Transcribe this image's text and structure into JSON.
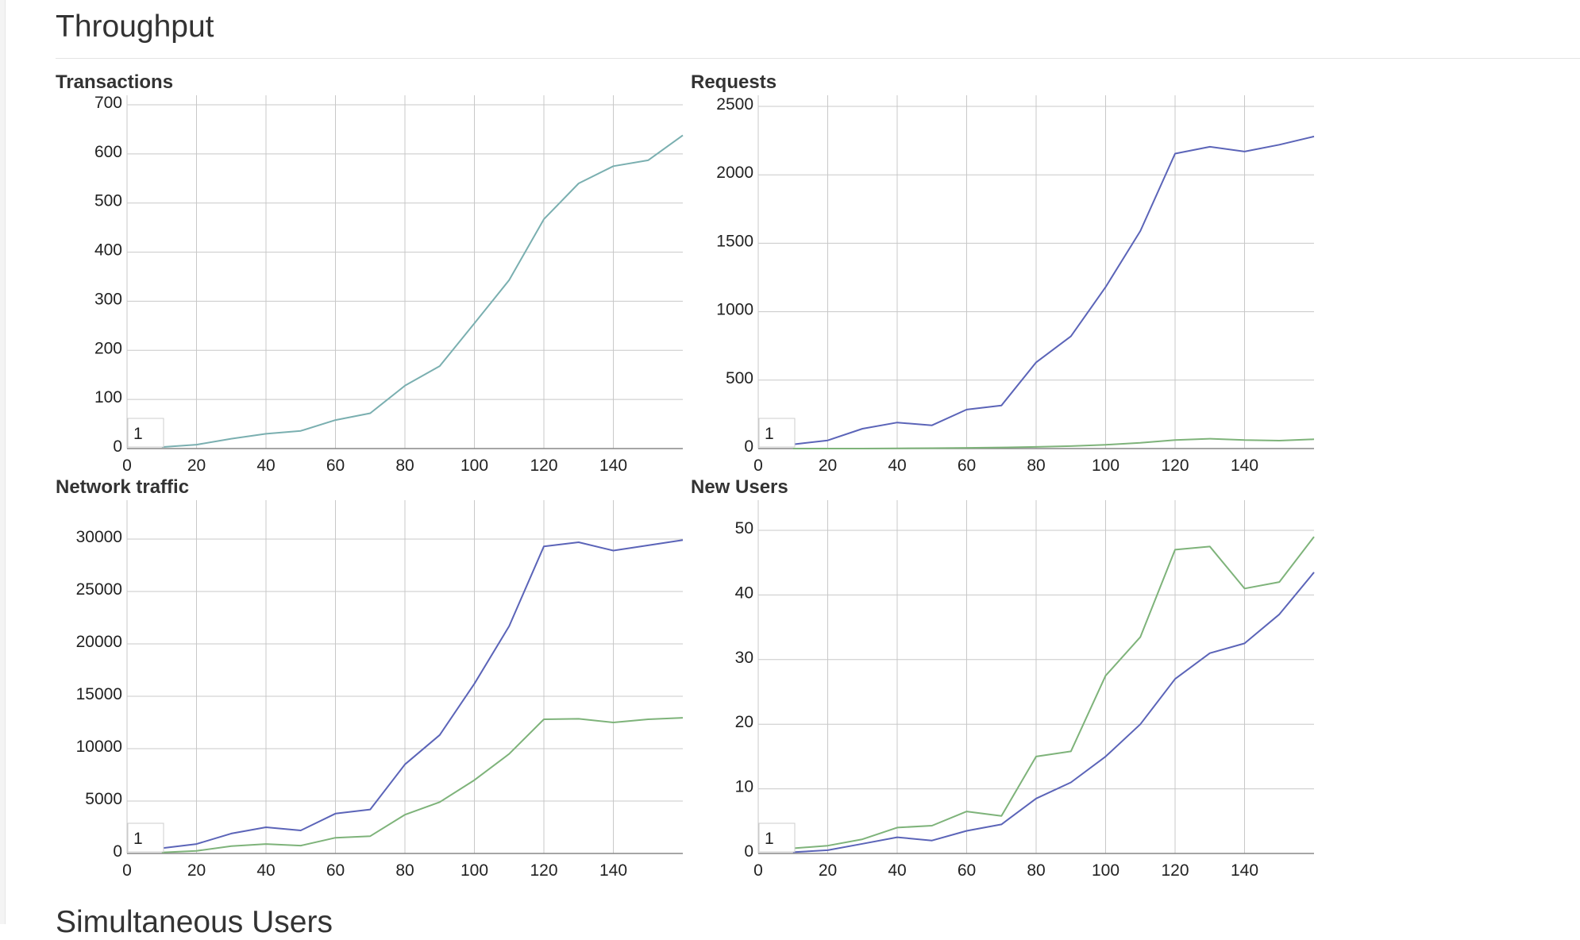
{
  "page": {
    "section_title": "Throughput",
    "next_section_title": "Simultaneous Users"
  },
  "colors": {
    "teal": "#7aafb0",
    "blue": "#5b64b8",
    "green": "#7eb37a",
    "grid": "#c8c8c8",
    "axis": "#888888"
  },
  "chart_data": [
    {
      "id": "transactions",
      "type": "line",
      "title": "Transactions",
      "xlim": [
        0,
        160
      ],
      "ylim": [
        0,
        700
      ],
      "xticks": [
        0,
        20,
        40,
        60,
        80,
        100,
        120,
        140
      ],
      "xtick_labels": [
        "0",
        "20",
        "40",
        "60",
        "80",
        "100",
        "120",
        "140"
      ],
      "yticks": [
        0,
        100,
        200,
        300,
        400,
        500,
        600,
        700
      ],
      "ytick_labels": [
        "0",
        "100",
        "200",
        "300",
        "400",
        "500",
        "600",
        "700"
      ],
      "legend_label": "1",
      "legend_position": "bottom-left",
      "grid": true,
      "series": [
        {
          "color": "#7aafb0",
          "x": [
            10,
            20,
            30,
            40,
            50,
            60,
            70,
            80,
            90,
            100,
            110,
            120,
            130,
            140,
            150,
            160
          ],
          "y": [
            3,
            8,
            20,
            30,
            36,
            58,
            72,
            128,
            168,
            255,
            343,
            467,
            540,
            575,
            587,
            638
          ]
        }
      ]
    },
    {
      "id": "requests",
      "type": "line",
      "title": "Requests",
      "xlim": [
        0,
        160
      ],
      "ylim": [
        0,
        2500
      ],
      "xticks": [
        0,
        20,
        40,
        60,
        80,
        100,
        120,
        140
      ],
      "xtick_labels": [
        "0",
        "20",
        "40",
        "60",
        "80",
        "100",
        "120",
        "140"
      ],
      "yticks": [
        0,
        500,
        1000,
        1500,
        2000,
        2500
      ],
      "ytick_labels": [
        "0",
        "500",
        "1000",
        "1500",
        "2000",
        "2500"
      ],
      "legend_label": "1",
      "legend_position": "bottom-left",
      "grid": true,
      "series": [
        {
          "color": "#5b64b8",
          "x": [
            10,
            20,
            30,
            40,
            50,
            60,
            70,
            80,
            90,
            100,
            110,
            120,
            130,
            140,
            150,
            160
          ],
          "y": [
            30,
            60,
            145,
            190,
            170,
            285,
            315,
            630,
            820,
            1180,
            1590,
            2155,
            2205,
            2170,
            2220,
            2280
          ]
        },
        {
          "color": "#7eb37a",
          "x": [
            10,
            20,
            30,
            40,
            50,
            60,
            70,
            80,
            90,
            100,
            110,
            120,
            130,
            140,
            150,
            160
          ],
          "y": [
            0,
            0,
            0,
            2,
            3,
            5,
            8,
            12,
            18,
            28,
            42,
            62,
            72,
            62,
            58,
            68
          ]
        }
      ]
    },
    {
      "id": "network-traffic",
      "type": "line",
      "title": "Network traffic",
      "xlim": [
        0,
        160
      ],
      "ylim": [
        0,
        32000
      ],
      "xticks": [
        0,
        20,
        40,
        60,
        80,
        100,
        120,
        140
      ],
      "xtick_labels": [
        "0",
        "20",
        "40",
        "60",
        "80",
        "100",
        "120",
        "140"
      ],
      "yticks": [
        0,
        5000,
        10000,
        15000,
        20000,
        25000,
        30000
      ],
      "ytick_labels": [
        "0",
        "5000",
        "10000",
        "15000",
        "20000",
        "25000",
        "30000"
      ],
      "legend_label": "1",
      "legend_position": "bottom-left",
      "grid": true,
      "series": [
        {
          "color": "#5b64b8",
          "x": [
            10,
            20,
            30,
            40,
            50,
            60,
            70,
            80,
            90,
            100,
            110,
            120,
            130,
            140,
            150,
            160
          ],
          "y": [
            500,
            900,
            1900,
            2500,
            2200,
            3800,
            4200,
            8500,
            11300,
            16200,
            21700,
            29300,
            29700,
            28900,
            29400,
            29900
          ]
        },
        {
          "color": "#7eb37a",
          "x": [
            10,
            20,
            30,
            40,
            50,
            60,
            70,
            80,
            90,
            100,
            110,
            120,
            130,
            140,
            150,
            160
          ],
          "y": [
            100,
            250,
            700,
            900,
            750,
            1500,
            1650,
            3700,
            4900,
            7000,
            9500,
            12800,
            12850,
            12500,
            12800,
            12950
          ]
        }
      ]
    },
    {
      "id": "new-users",
      "type": "line",
      "title": "New Users",
      "xlim": [
        0,
        160
      ],
      "ylim": [
        0,
        50
      ],
      "xticks": [
        0,
        20,
        40,
        60,
        80,
        100,
        120,
        140
      ],
      "xtick_labels": [
        "0",
        "20",
        "40",
        "60",
        "80",
        "100",
        "120",
        "140"
      ],
      "yticks": [
        0,
        10,
        20,
        30,
        40,
        50
      ],
      "ytick_labels": [
        "0",
        "10",
        "20",
        "30",
        "40",
        "50"
      ],
      "legend_label": "1",
      "legend_position": "bottom-left",
      "grid": true,
      "series": [
        {
          "color": "#5b64b8",
          "x": [
            10,
            20,
            30,
            40,
            50,
            60,
            70,
            80,
            90,
            100,
            110,
            120,
            130,
            140,
            150,
            160
          ],
          "y": [
            0.2,
            0.5,
            1.5,
            2.5,
            2,
            3.5,
            4.5,
            8.5,
            11,
            15,
            20,
            27,
            31,
            32.5,
            37,
            43.5
          ]
        },
        {
          "color": "#7eb37a",
          "x": [
            10,
            20,
            30,
            40,
            50,
            60,
            70,
            80,
            90,
            100,
            110,
            120,
            130,
            140,
            150,
            160
          ],
          "y": [
            0.8,
            1.2,
            2.2,
            4,
            4.3,
            6.5,
            5.8,
            15,
            15.8,
            27.5,
            33.5,
            47,
            47.5,
            41,
            42,
            49
          ]
        }
      ]
    }
  ]
}
